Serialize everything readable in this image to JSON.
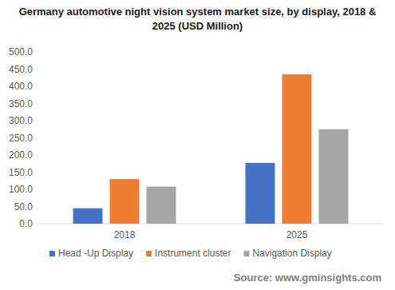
{
  "chart_data": {
    "type": "bar",
    "title": "Germany automotive night vision system market size, by display, 2018 & 2025 (USD Million)",
    "categories": [
      "2018",
      "2025"
    ],
    "series": [
      {
        "name": "Head -Up Display",
        "color": "#4472c4",
        "values": [
          45,
          177
        ]
      },
      {
        "name": "Instrument cluster",
        "color": "#ed7d31",
        "values": [
          130,
          435
        ]
      },
      {
        "name": "Navigation Display",
        "color": "#a5a5a5",
        "values": [
          108,
          275
        ]
      }
    ],
    "ylim": [
      0,
      500
    ],
    "yticks": [
      {
        "value": 0,
        "label": "0.0"
      },
      {
        "value": 50,
        "label": "50.0"
      },
      {
        "value": 100,
        "label": "100.0"
      },
      {
        "value": 150,
        "label": "150.0"
      },
      {
        "value": 200,
        "label": "200.0"
      },
      {
        "value": 250,
        "label": "250.0"
      },
      {
        "value": 300,
        "label": "300.0"
      },
      {
        "value": 350,
        "label": "350.0"
      },
      {
        "value": 400,
        "label": "400.0"
      },
      {
        "value": 450,
        "label": "450.0"
      },
      {
        "value": 500,
        "label": "500.0"
      }
    ],
    "grid": false,
    "legend": "bottom",
    "source": "Source: www.gminsights.com"
  }
}
